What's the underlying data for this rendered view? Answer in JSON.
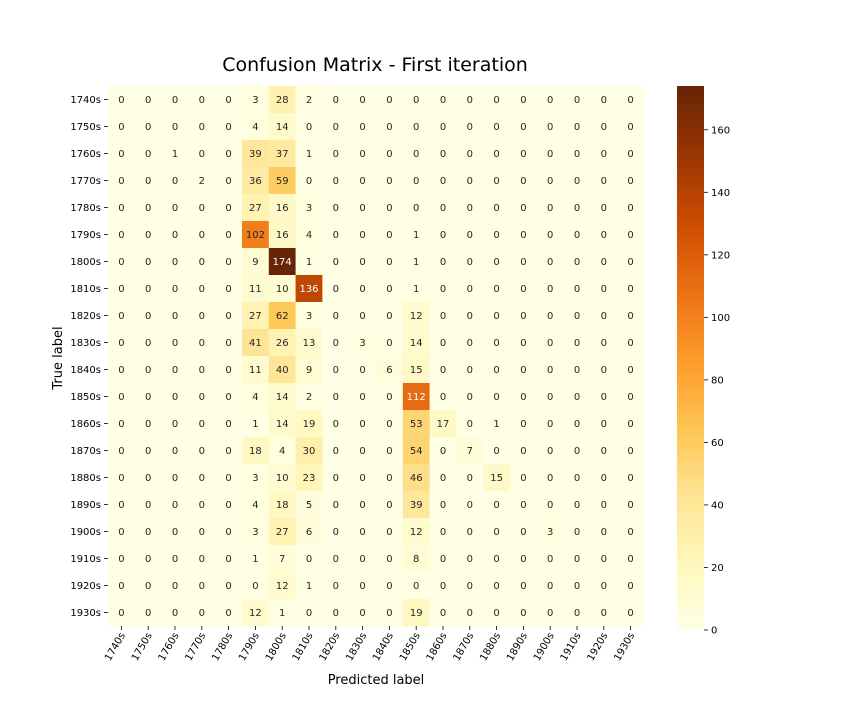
{
  "chart_data": {
    "type": "heatmap",
    "title": "Confusion Matrix - First iteration",
    "xlabel": "Predicted label",
    "ylabel": "True label",
    "rows": [
      "1740s",
      "1750s",
      "1760s",
      "1770s",
      "1780s",
      "1790s",
      "1800s",
      "1810s",
      "1820s",
      "1830s",
      "1840s",
      "1850s",
      "1860s",
      "1870s",
      "1880s",
      "1890s",
      "1900s",
      "1910s",
      "1920s",
      "1930s"
    ],
    "columns": [
      "1740s",
      "1750s",
      "1760s",
      "1770s",
      "1780s",
      "1790s",
      "1800s",
      "1810s",
      "1820s",
      "1830s",
      "1840s",
      "1850s",
      "1860s",
      "1870s",
      "1880s",
      "1890s",
      "1900s",
      "1910s",
      "1920s",
      "1930s"
    ],
    "matrix": [
      [
        0,
        0,
        0,
        0,
        0,
        3,
        28,
        2,
        0,
        0,
        0,
        0,
        0,
        0,
        0,
        0,
        0,
        0,
        0,
        0
      ],
      [
        0,
        0,
        0,
        0,
        0,
        4,
        14,
        0,
        0,
        0,
        0,
        0,
        0,
        0,
        0,
        0,
        0,
        0,
        0,
        0
      ],
      [
        0,
        0,
        1,
        0,
        0,
        39,
        37,
        1,
        0,
        0,
        0,
        0,
        0,
        0,
        0,
        0,
        0,
        0,
        0,
        0
      ],
      [
        0,
        0,
        0,
        2,
        0,
        36,
        59,
        0,
        0,
        0,
        0,
        0,
        0,
        0,
        0,
        0,
        0,
        0,
        0,
        0
      ],
      [
        0,
        0,
        0,
        0,
        0,
        27,
        16,
        3,
        0,
        0,
        0,
        0,
        0,
        0,
        0,
        0,
        0,
        0,
        0,
        0
      ],
      [
        0,
        0,
        0,
        0,
        0,
        102,
        16,
        4,
        0,
        0,
        0,
        1,
        0,
        0,
        0,
        0,
        0,
        0,
        0,
        0
      ],
      [
        0,
        0,
        0,
        0,
        0,
        9,
        174,
        1,
        0,
        0,
        0,
        1,
        0,
        0,
        0,
        0,
        0,
        0,
        0,
        0
      ],
      [
        0,
        0,
        0,
        0,
        0,
        11,
        10,
        136,
        0,
        0,
        0,
        1,
        0,
        0,
        0,
        0,
        0,
        0,
        0,
        0
      ],
      [
        0,
        0,
        0,
        0,
        0,
        27,
        62,
        3,
        0,
        0,
        0,
        12,
        0,
        0,
        0,
        0,
        0,
        0,
        0,
        0
      ],
      [
        0,
        0,
        0,
        0,
        0,
        41,
        26,
        13,
        0,
        3,
        0,
        14,
        0,
        0,
        0,
        0,
        0,
        0,
        0,
        0
      ],
      [
        0,
        0,
        0,
        0,
        0,
        11,
        40,
        9,
        0,
        0,
        6,
        15,
        0,
        0,
        0,
        0,
        0,
        0,
        0,
        0
      ],
      [
        0,
        0,
        0,
        0,
        0,
        4,
        14,
        2,
        0,
        0,
        0,
        112,
        0,
        0,
        0,
        0,
        0,
        0,
        0,
        0
      ],
      [
        0,
        0,
        0,
        0,
        0,
        1,
        14,
        19,
        0,
        0,
        0,
        53,
        17,
        0,
        1,
        0,
        0,
        0,
        0,
        0
      ],
      [
        0,
        0,
        0,
        0,
        0,
        18,
        4,
        30,
        0,
        0,
        0,
        54,
        0,
        7,
        0,
        0,
        0,
        0,
        0,
        0
      ],
      [
        0,
        0,
        0,
        0,
        0,
        3,
        10,
        23,
        0,
        0,
        0,
        46,
        0,
        0,
        15,
        0,
        0,
        0,
        0,
        0
      ],
      [
        0,
        0,
        0,
        0,
        0,
        4,
        18,
        5,
        0,
        0,
        0,
        39,
        0,
        0,
        0,
        0,
        0,
        0,
        0,
        0
      ],
      [
        0,
        0,
        0,
        0,
        0,
        3,
        27,
        6,
        0,
        0,
        0,
        12,
        0,
        0,
        0,
        0,
        3,
        0,
        0,
        0
      ],
      [
        0,
        0,
        0,
        0,
        0,
        1,
        7,
        0,
        0,
        0,
        0,
        8,
        0,
        0,
        0,
        0,
        0,
        0,
        0,
        0
      ],
      [
        0,
        0,
        0,
        0,
        0,
        0,
        12,
        1,
        0,
        0,
        0,
        0,
        0,
        0,
        0,
        0,
        0,
        0,
        0,
        0
      ],
      [
        0,
        0,
        0,
        0,
        0,
        12,
        1,
        0,
        0,
        0,
        0,
        19,
        0,
        0,
        0,
        0,
        0,
        0,
        0,
        0
      ]
    ],
    "colormap": "YlOrBr",
    "color_range": [
      0,
      174
    ],
    "colorbar_ticks": [
      0,
      20,
      40,
      60,
      80,
      100,
      120,
      140,
      160
    ],
    "grid": false,
    "legend": "colorbar-right"
  }
}
